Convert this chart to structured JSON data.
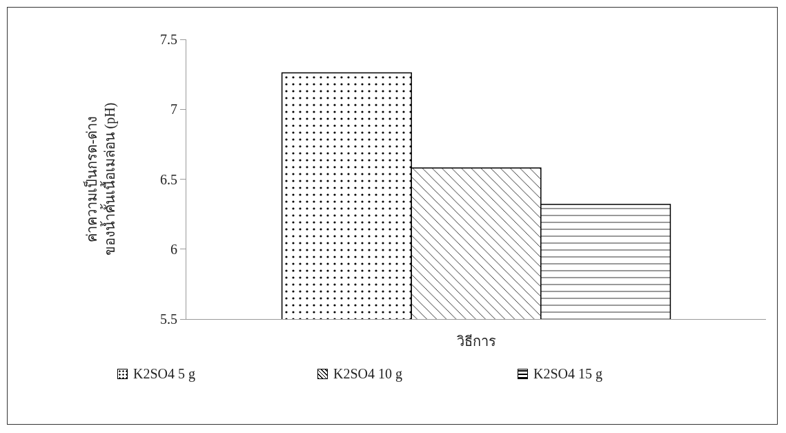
{
  "chart_data": {
    "type": "bar",
    "xlabel": "วิธีการ",
    "ylabel": "ค่าความเป็นกรด-ด่าง\nของน้ำคั้นเนื้อเมล่อน (pH)",
    "categories": [
      null
    ],
    "series": [
      {
        "name": "K2SO4 5 g",
        "color": "#000000",
        "values": [
          7.26
        ]
      },
      {
        "name": "K2SO4 10 g",
        "color": "#000000",
        "values": [
          6.58
        ]
      },
      {
        "name": "K2SO4 15 g",
        "color": "#000000",
        "values": [
          6.32
        ]
      }
    ],
    "ylim": [
      5.5,
      7.5
    ],
    "yticks": [
      5.5,
      6,
      6.5,
      7,
      7.5
    ],
    "grid": false,
    "legend": "bottom"
  }
}
